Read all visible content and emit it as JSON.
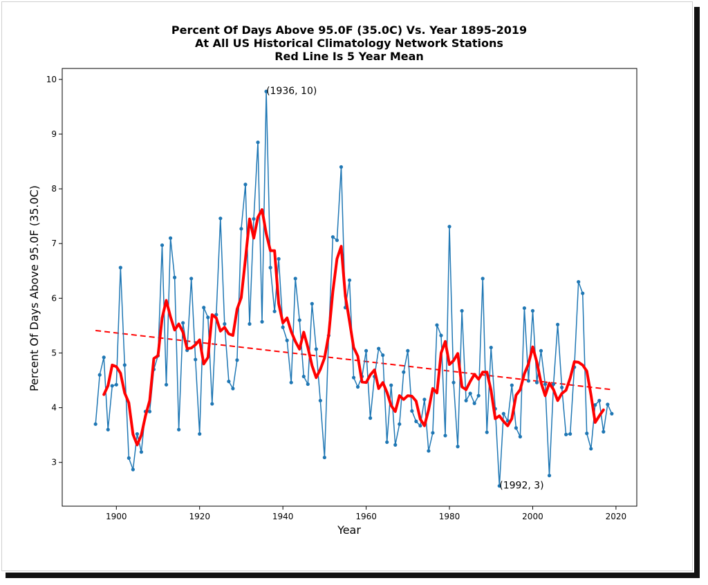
{
  "chart_data": {
    "type": "line",
    "title": [
      "Percent Of Days Above 95.0F (35.0C) Vs. Year 1895-2019",
      "At All US Historical Climatology Network Stations",
      "Red Line Is 5 Year Mean"
    ],
    "xlabel": "Year",
    "ylabel": "Percent Of Days Above 95.0F (35.0C)",
    "xlim": [
      1887,
      2025
    ],
    "ylim": [
      2.2,
      10.2
    ],
    "xticks": [
      1900,
      1920,
      1940,
      1960,
      1980,
      2000,
      2020
    ],
    "yticks": [
      3,
      4,
      5,
      6,
      7,
      8,
      9,
      10
    ],
    "grid": false,
    "series": [
      {
        "style": "line-with-dots",
        "color": "#1f77b4",
        "x": [
          1895,
          1896,
          1897,
          1898,
          1899,
          1900,
          1901,
          1902,
          1903,
          1904,
          1905,
          1906,
          1907,
          1908,
          1909,
          1910,
          1911,
          1912,
          1913,
          1914,
          1915,
          1916,
          1917,
          1918,
          1919,
          1920,
          1921,
          1922,
          1923,
          1924,
          1925,
          1926,
          1927,
          1928,
          1929,
          1930,
          1931,
          1932,
          1933,
          1934,
          1935,
          1936,
          1937,
          1938,
          1939,
          1940,
          1941,
          1942,
          1943,
          1944,
          1945,
          1946,
          1947,
          1948,
          1949,
          1950,
          1951,
          1952,
          1953,
          1954,
          1955,
          1956,
          1957,
          1958,
          1959,
          1960,
          1961,
          1962,
          1963,
          1964,
          1965,
          1966,
          1967,
          1968,
          1969,
          1970,
          1971,
          1972,
          1973,
          1974,
          1975,
          1976,
          1977,
          1978,
          1979,
          1980,
          1981,
          1982,
          1983,
          1984,
          1985,
          1986,
          1987,
          1988,
          1989,
          1990,
          1991,
          1992,
          1993,
          1994,
          1995,
          1996,
          1997,
          1998,
          1999,
          2000,
          2001,
          2002,
          2003,
          2004,
          2005,
          2006,
          2007,
          2008,
          2009,
          2010,
          2011,
          2012,
          2013,
          2014,
          2015,
          2016,
          2017,
          2018,
          2019
        ],
        "y": [
          3.7,
          4.6,
          4.92,
          3.6,
          4.4,
          4.42,
          6.56,
          4.78,
          3.08,
          2.87,
          3.52,
          3.19,
          3.93,
          3.93,
          4.7,
          4.95,
          6.97,
          4.42,
          7.1,
          6.38,
          3.6,
          5.55,
          5.05,
          6.36,
          4.88,
          3.52,
          5.83,
          5.65,
          4.07,
          5.7,
          7.46,
          5.53,
          4.48,
          4.35,
          4.87,
          7.27,
          8.08,
          5.53,
          7.45,
          8.85,
          5.57,
          9.78,
          6.56,
          5.76,
          6.72,
          5.47,
          5.23,
          4.46,
          6.36,
          5.6,
          4.57,
          4.43,
          5.9,
          5.07,
          4.13,
          3.09,
          5.32,
          7.12,
          7.06,
          8.4,
          5.83,
          6.33,
          4.55,
          4.38,
          4.57,
          5.04,
          3.81,
          4.57,
          5.08,
          4.96,
          3.37,
          4.41,
          3.32,
          3.7,
          4.65,
          5.04,
          3.94,
          3.75,
          3.67,
          4.15,
          3.21,
          3.54,
          5.51,
          5.32,
          3.49,
          7.31,
          4.46,
          3.29,
          5.77,
          4.13,
          4.26,
          4.08,
          4.22,
          6.36,
          3.55,
          5.1,
          3.98,
          2.57,
          3.89,
          3.76,
          4.41,
          3.63,
          3.47,
          5.82,
          4.49,
          5.77,
          4.46,
          5.04,
          4.43,
          2.76,
          4.43,
          5.52,
          4.37,
          3.51,
          3.52,
          4.74,
          6.3,
          6.09,
          3.53,
          3.25,
          4.05,
          4.13,
          3.56,
          4.06,
          3.89
        ]
      },
      {
        "name": "5 Year Mean",
        "style": "thick-line",
        "color": "#ff0000",
        "x": [
          1897,
          1898,
          1899,
          1900,
          1901,
          1902,
          1903,
          1904,
          1905,
          1906,
          1907,
          1908,
          1909,
          1910,
          1911,
          1912,
          1913,
          1914,
          1915,
          1916,
          1917,
          1918,
          1919,
          1920,
          1921,
          1922,
          1923,
          1924,
          1925,
          1926,
          1927,
          1928,
          1929,
          1930,
          1931,
          1932,
          1933,
          1934,
          1935,
          1936,
          1937,
          1938,
          1939,
          1940,
          1941,
          1942,
          1943,
          1944,
          1945,
          1946,
          1947,
          1948,
          1949,
          1950,
          1951,
          1952,
          1953,
          1954,
          1955,
          1956,
          1957,
          1958,
          1959,
          1960,
          1961,
          1962,
          1963,
          1964,
          1965,
          1966,
          1967,
          1968,
          1969,
          1970,
          1971,
          1972,
          1973,
          1974,
          1975,
          1976,
          1977,
          1978,
          1979,
          1980,
          1981,
          1982,
          1983,
          1984,
          1985,
          1986,
          1987,
          1988,
          1989,
          1990,
          1991,
          1992,
          1993,
          1994,
          1995,
          1996,
          1997,
          1998,
          1999,
          2000,
          2001,
          2002,
          2003,
          2004,
          2005,
          2006,
          2007,
          2008,
          2009,
          2010,
          2011,
          2012,
          2013,
          2014,
          2015,
          2016,
          2017
        ],
        "y": [
          4.24,
          4.4,
          4.78,
          4.75,
          4.63,
          4.27,
          4.09,
          3.51,
          3.32,
          3.5,
          3.85,
          4.13,
          4.9,
          4.95,
          5.64,
          5.96,
          5.66,
          5.42,
          5.53,
          5.38,
          5.08,
          5.09,
          5.15,
          5.24,
          4.8,
          4.92,
          5.7,
          5.64,
          5.4,
          5.47,
          5.35,
          5.32,
          5.8,
          6.01,
          6.72,
          7.45,
          7.1,
          7.48,
          7.62,
          7.18,
          6.87,
          6.87,
          5.9,
          5.55,
          5.64,
          5.39,
          5.21,
          5.07,
          5.38,
          5.1,
          4.77,
          4.55,
          4.7,
          4.91,
          5.33,
          6.12,
          6.72,
          6.95,
          6.04,
          5.58,
          5.1,
          4.94,
          4.47,
          4.46,
          4.6,
          4.69,
          4.35,
          4.46,
          4.28,
          4.04,
          3.93,
          4.22,
          4.15,
          4.22,
          4.21,
          4.12,
          3.79,
          3.67,
          3.96,
          4.35,
          4.27,
          5.0,
          5.21,
          4.79,
          4.86,
          4.99,
          4.38,
          4.33,
          4.48,
          4.61,
          4.52,
          4.65,
          4.65,
          4.32,
          3.8,
          3.85,
          3.75,
          3.67,
          3.8,
          4.23,
          4.33,
          4.62,
          4.8,
          5.11,
          4.83,
          4.46,
          4.22,
          4.45,
          4.33,
          4.13,
          4.26,
          4.32,
          4.54,
          4.84,
          4.83,
          4.78,
          4.67,
          4.23,
          3.73,
          3.85,
          3.96
        ]
      },
      {
        "name": "trend",
        "style": "dashed",
        "color": "#ff0000",
        "x": [
          1895,
          2019
        ],
        "y": [
          5.41,
          4.33
        ]
      }
    ],
    "annotations": [
      {
        "text": "(1936, 10)",
        "x": 1936,
        "y": 9.78
      },
      {
        "text": "(1992, 3)",
        "x": 1992,
        "y": 2.57
      }
    ]
  }
}
